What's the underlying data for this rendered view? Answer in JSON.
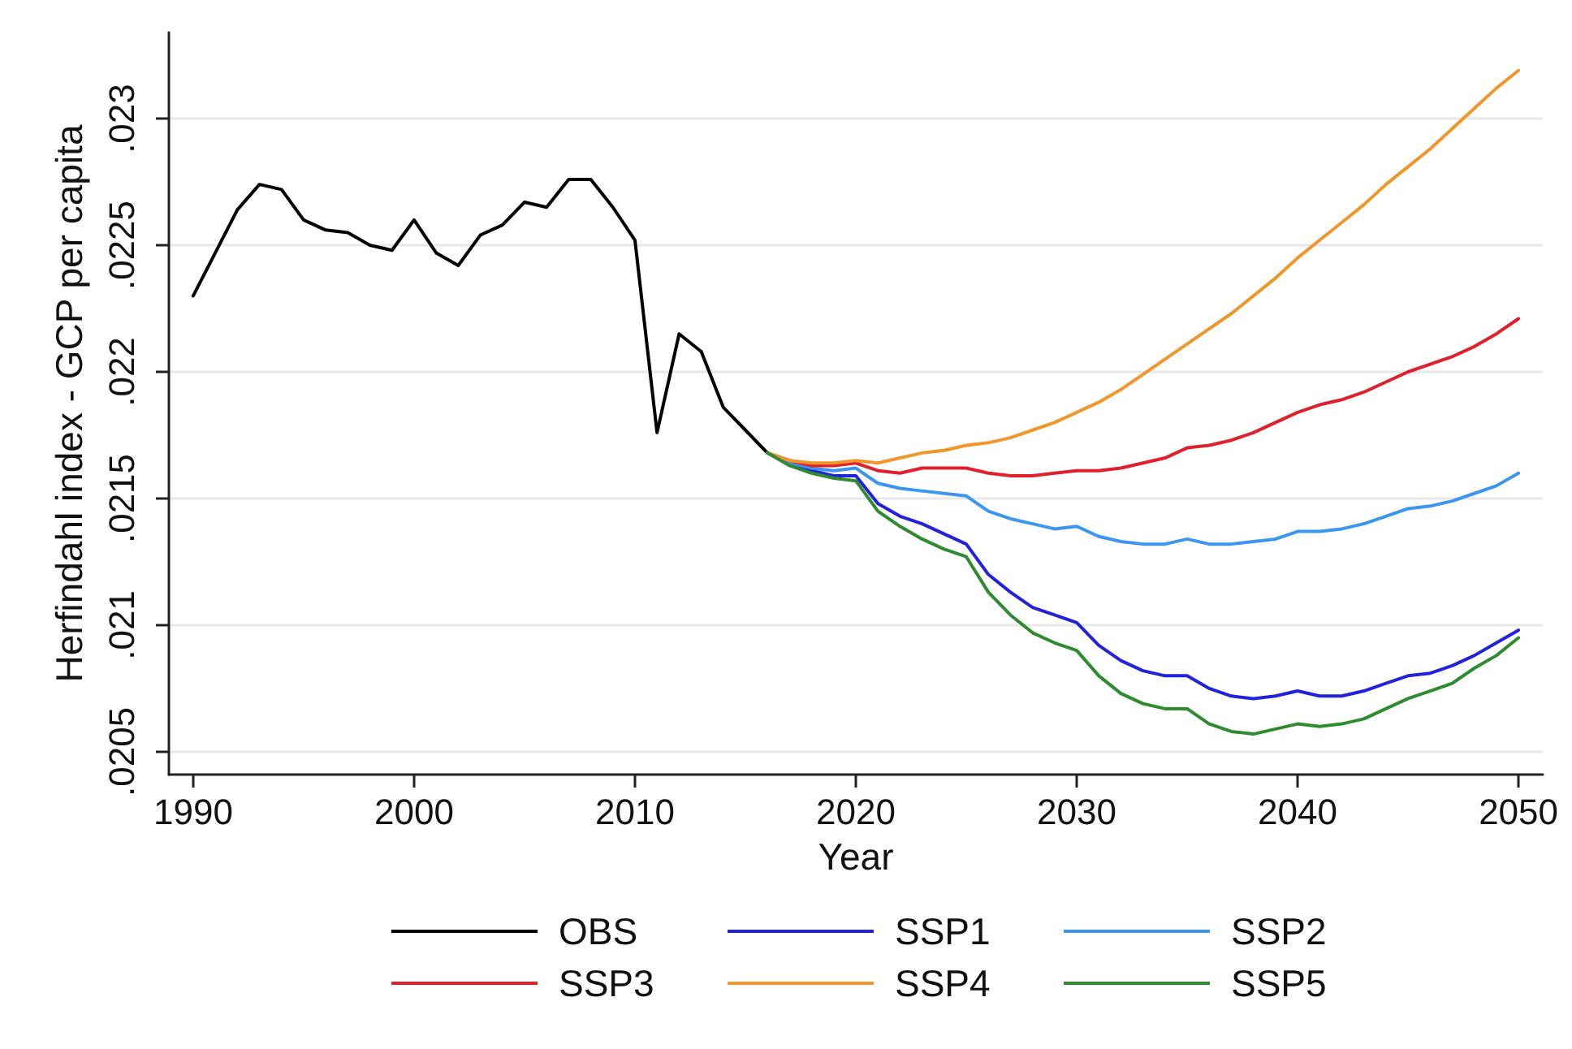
{
  "chart_data": {
    "type": "line",
    "xlabel": "Year",
    "ylabel": "Herfindahl index - GCP per capita",
    "xlim": [
      1988.9,
      2051.1
    ],
    "xticks": [
      1990,
      2000,
      2010,
      2020,
      2030,
      2040,
      2050
    ],
    "ylim": [
      0.02041,
      0.02334
    ],
    "yticks": [
      {
        "value": 0.0205,
        "label": ".0205"
      },
      {
        "value": 0.021,
        "label": ".021"
      },
      {
        "value": 0.0215,
        "label": ".0215"
      },
      {
        "value": 0.022,
        "label": ".022"
      },
      {
        "value": 0.0225,
        "label": ".0225"
      },
      {
        "value": 0.023,
        "label": ".023"
      }
    ],
    "grid": "y",
    "legend": "bottom",
    "marker": "none",
    "line_style": "solid",
    "series": [
      {
        "name": "OBS",
        "color": "#000000",
        "x": [
          1990,
          1991,
          1992,
          1993,
          1994,
          1995,
          1996,
          1997,
          1998,
          1999,
          2000,
          2001,
          2002,
          2003,
          2004,
          2005,
          2006,
          2007,
          2008,
          2009,
          2010,
          2011,
          2012,
          2013,
          2014,
          2015,
          2016
        ],
        "values": [
          0.0223,
          0.02247,
          0.02264,
          0.02274,
          0.02272,
          0.0226,
          0.02256,
          0.02255,
          0.0225,
          0.02248,
          0.0226,
          0.02247,
          0.02242,
          0.02254,
          0.02258,
          0.02267,
          0.02265,
          0.02276,
          0.02276,
          0.02265,
          0.02252,
          0.02176,
          0.02215,
          0.02208,
          0.02186,
          0.02177,
          0.02168
        ]
      },
      {
        "name": "SSP1",
        "color": "#2222dd",
        "x": [
          2016,
          2017,
          2018,
          2019,
          2020,
          2021,
          2022,
          2023,
          2024,
          2025,
          2026,
          2027,
          2028,
          2029,
          2030,
          2031,
          2032,
          2033,
          2034,
          2035,
          2036,
          2037,
          2038,
          2039,
          2040,
          2041,
          2042,
          2043,
          2044,
          2045,
          2046,
          2047,
          2048,
          2049,
          2050
        ],
        "values": [
          0.02168,
          0.02164,
          0.02161,
          0.02159,
          0.02159,
          0.02148,
          0.02143,
          0.0214,
          0.02136,
          0.02132,
          0.0212,
          0.02113,
          0.02107,
          0.02104,
          0.02101,
          0.02092,
          0.02086,
          0.02082,
          0.0208,
          0.0208,
          0.02075,
          0.02072,
          0.02071,
          0.02072,
          0.02074,
          0.02072,
          0.02072,
          0.02074,
          0.02077,
          0.0208,
          0.02081,
          0.02084,
          0.02088,
          0.02093,
          0.02098
        ]
      },
      {
        "name": "SSP2",
        "color": "#3a96f0",
        "x": [
          2016,
          2017,
          2018,
          2019,
          2020,
          2021,
          2022,
          2023,
          2024,
          2025,
          2026,
          2027,
          2028,
          2029,
          2030,
          2031,
          2032,
          2033,
          2034,
          2035,
          2036,
          2037,
          2038,
          2039,
          2040,
          2041,
          2042,
          2043,
          2044,
          2045,
          2046,
          2047,
          2048,
          2049,
          2050
        ],
        "values": [
          0.02168,
          0.02164,
          0.02162,
          0.02161,
          0.02162,
          0.02156,
          0.02154,
          0.02153,
          0.02152,
          0.02151,
          0.02145,
          0.02142,
          0.0214,
          0.02138,
          0.02139,
          0.02135,
          0.02133,
          0.02132,
          0.02132,
          0.02134,
          0.02132,
          0.02132,
          0.02133,
          0.02134,
          0.02137,
          0.02137,
          0.02138,
          0.0214,
          0.02143,
          0.02146,
          0.02147,
          0.02149,
          0.02152,
          0.02155,
          0.0216
        ]
      },
      {
        "name": "SSP3",
        "color": "#e0202a",
        "x": [
          2016,
          2017,
          2018,
          2019,
          2020,
          2021,
          2022,
          2023,
          2024,
          2025,
          2026,
          2027,
          2028,
          2029,
          2030,
          2031,
          2032,
          2033,
          2034,
          2035,
          2036,
          2037,
          2038,
          2039,
          2040,
          2041,
          2042,
          2043,
          2044,
          2045,
          2046,
          2047,
          2048,
          2049,
          2050
        ],
        "values": [
          0.02168,
          0.02165,
          0.02163,
          0.02163,
          0.02164,
          0.02161,
          0.0216,
          0.02162,
          0.02162,
          0.02162,
          0.0216,
          0.02159,
          0.02159,
          0.0216,
          0.02161,
          0.02161,
          0.02162,
          0.02164,
          0.02166,
          0.0217,
          0.02171,
          0.02173,
          0.02176,
          0.0218,
          0.02184,
          0.02187,
          0.02189,
          0.02192,
          0.02196,
          0.022,
          0.02203,
          0.02206,
          0.0221,
          0.02215,
          0.02221
        ]
      },
      {
        "name": "SSP4",
        "color": "#f0962a",
        "x": [
          2016,
          2017,
          2018,
          2019,
          2020,
          2021,
          2022,
          2023,
          2024,
          2025,
          2026,
          2027,
          2028,
          2029,
          2030,
          2031,
          2032,
          2033,
          2034,
          2035,
          2036,
          2037,
          2038,
          2039,
          2040,
          2041,
          2042,
          2043,
          2044,
          2045,
          2046,
          2047,
          2048,
          2049,
          2050
        ],
        "values": [
          0.02168,
          0.02165,
          0.02164,
          0.02164,
          0.02165,
          0.02164,
          0.02166,
          0.02168,
          0.02169,
          0.02171,
          0.02172,
          0.02174,
          0.02177,
          0.0218,
          0.02184,
          0.02188,
          0.02193,
          0.02199,
          0.02205,
          0.02211,
          0.02217,
          0.02223,
          0.0223,
          0.02237,
          0.02245,
          0.02252,
          0.02259,
          0.02266,
          0.02274,
          0.02281,
          0.02288,
          0.02296,
          0.02304,
          0.02312,
          0.02319
        ]
      },
      {
        "name": "SSP5",
        "color": "#2e8b2e",
        "x": [
          2016,
          2017,
          2018,
          2019,
          2020,
          2021,
          2022,
          2023,
          2024,
          2025,
          2026,
          2027,
          2028,
          2029,
          2030,
          2031,
          2032,
          2033,
          2034,
          2035,
          2036,
          2037,
          2038,
          2039,
          2040,
          2041,
          2042,
          2043,
          2044,
          2045,
          2046,
          2047,
          2048,
          2049,
          2050
        ],
        "values": [
          0.02168,
          0.02163,
          0.0216,
          0.02158,
          0.02157,
          0.02145,
          0.02139,
          0.02134,
          0.0213,
          0.02127,
          0.02113,
          0.02104,
          0.02097,
          0.02093,
          0.0209,
          0.0208,
          0.02073,
          0.02069,
          0.02067,
          0.02067,
          0.02061,
          0.02058,
          0.02057,
          0.02059,
          0.02061,
          0.0206,
          0.02061,
          0.02063,
          0.02067,
          0.02071,
          0.02074,
          0.02077,
          0.02083,
          0.02088,
          0.02095
        ]
      }
    ]
  }
}
